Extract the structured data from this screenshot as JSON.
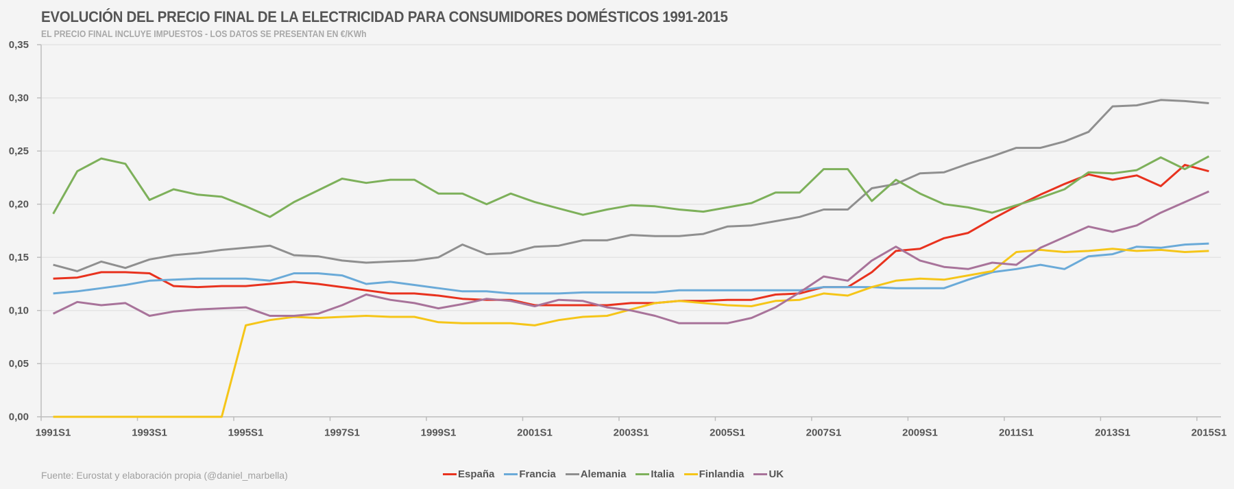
{
  "chart_data": {
    "type": "line",
    "title": "EVOLUCIÓN DEL PRECIO FINAL DE LA ELECTRICIDAD PARA CONSUMIDORES DOMÉSTICOS 1991-2015",
    "subtitle": "EL PRECIO FINAL INCLUYE IMPUESTOS - LOS DATOS SE PRESENTAN EN €/KWh",
    "xlabel": "",
    "ylabel": "",
    "ylim": [
      0,
      0.35
    ],
    "yticks": [
      "0,00",
      "0,05",
      "0,10",
      "0,15",
      "0,20",
      "0,25",
      "0,30",
      "0,35"
    ],
    "ytick_values": [
      0,
      0.05,
      0.1,
      0.15,
      0.2,
      0.25,
      0.3,
      0.35
    ],
    "grid": true,
    "legend_position": "bottom",
    "x": [
      "1991S1",
      "1991S2",
      "1992S1",
      "1992S2",
      "1993S1",
      "1993S2",
      "1994S1",
      "1994S2",
      "1995S1",
      "1995S2",
      "1996S1",
      "1996S2",
      "1997S1",
      "1997S2",
      "1998S1",
      "1998S2",
      "1999S1",
      "1999S2",
      "2000S1",
      "2000S2",
      "2001S1",
      "2001S2",
      "2002S1",
      "2002S2",
      "2003S1",
      "2003S2",
      "2004S1",
      "2004S2",
      "2005S1",
      "2005S2",
      "2006S1",
      "2006S2",
      "2007S1",
      "2007S2",
      "2008S1",
      "2008S2",
      "2009S1",
      "2009S2",
      "2010S1",
      "2010S2",
      "2011S1",
      "2011S2",
      "2012S1",
      "2012S2",
      "2013S1",
      "2013S2",
      "2014S1",
      "2014S2",
      "2015S1"
    ],
    "xtick_labels": [
      "1991S1",
      "1993S1",
      "1995S1",
      "1997S1",
      "1999S1",
      "2001S1",
      "2003S1",
      "2005S1",
      "2007S1",
      "2009S1",
      "2011S1",
      "2013S1",
      "2015S1"
    ],
    "series": [
      {
        "name": "España",
        "color": "#e8321e",
        "values": [
          0.13,
          0.131,
          0.136,
          0.136,
          0.135,
          0.123,
          0.122,
          0.123,
          0.123,
          0.125,
          0.127,
          0.125,
          0.122,
          0.119,
          0.116,
          0.116,
          0.114,
          0.111,
          0.11,
          0.11,
          0.105,
          0.105,
          0.105,
          0.105,
          0.107,
          0.107,
          0.109,
          0.109,
          0.11,
          0.11,
          0.115,
          0.116,
          0.122,
          0.122,
          0.136,
          0.156,
          0.158,
          0.168,
          0.173,
          0.186,
          0.198,
          0.209,
          0.219,
          0.228,
          0.223,
          0.227,
          0.217,
          0.237,
          0.231
        ]
      },
      {
        "name": "Francia",
        "color": "#6aaad8",
        "values": [
          0.116,
          0.118,
          0.121,
          0.124,
          0.128,
          0.129,
          0.13,
          0.13,
          0.13,
          0.128,
          0.135,
          0.135,
          0.133,
          0.125,
          0.127,
          0.124,
          0.121,
          0.118,
          0.118,
          0.116,
          0.116,
          0.116,
          0.117,
          0.117,
          0.117,
          0.117,
          0.119,
          0.119,
          0.119,
          0.119,
          0.119,
          0.119,
          0.122,
          0.122,
          0.122,
          0.121,
          0.121,
          0.121,
          0.129,
          0.136,
          0.139,
          0.143,
          0.139,
          0.151,
          0.153,
          0.16,
          0.159,
          0.162,
          0.163
        ]
      },
      {
        "name": "Alemania",
        "color": "#8f8f8f",
        "values": [
          0.143,
          0.137,
          0.146,
          0.14,
          0.148,
          0.152,
          0.154,
          0.157,
          0.159,
          0.161,
          0.152,
          0.151,
          0.147,
          0.145,
          0.146,
          0.147,
          0.15,
          0.162,
          0.153,
          0.154,
          0.16,
          0.161,
          0.166,
          0.166,
          0.171,
          0.17,
          0.17,
          0.172,
          0.179,
          0.18,
          0.184,
          0.188,
          0.195,
          0.195,
          0.215,
          0.219,
          0.229,
          0.23,
          0.238,
          0.245,
          0.253,
          0.253,
          0.259,
          0.268,
          0.292,
          0.293,
          0.298,
          0.297,
          0.295
        ]
      },
      {
        "name": "Italia",
        "color": "#7db05a",
        "values": [
          0.191,
          0.231,
          0.243,
          0.238,
          0.204,
          0.214,
          0.209,
          0.207,
          0.198,
          0.188,
          0.202,
          0.213,
          0.224,
          0.22,
          0.223,
          0.223,
          0.21,
          0.21,
          0.2,
          0.21,
          0.202,
          0.196,
          0.19,
          0.195,
          0.199,
          0.198,
          0.195,
          0.193,
          0.197,
          0.201,
          0.211,
          0.211,
          0.233,
          0.233,
          0.203,
          0.223,
          0.21,
          0.2,
          0.197,
          0.192,
          0.199,
          0.206,
          0.214,
          0.23,
          0.229,
          0.232,
          0.244,
          0.233,
          0.245
        ]
      },
      {
        "name": "Finlandia",
        "color": "#f5c518",
        "values": [
          0,
          0,
          0,
          0,
          0,
          0,
          0,
          0,
          0.086,
          0.091,
          0.094,
          0.093,
          0.094,
          0.095,
          0.094,
          0.094,
          0.089,
          0.088,
          0.088,
          0.088,
          0.086,
          0.091,
          0.094,
          0.095,
          0.101,
          0.107,
          0.109,
          0.107,
          0.105,
          0.104,
          0.109,
          0.11,
          0.116,
          0.114,
          0.122,
          0.128,
          0.13,
          0.129,
          0.133,
          0.137,
          0.155,
          0.157,
          0.155,
          0.156,
          0.158,
          0.156,
          0.157,
          0.155,
          0.156
        ]
      },
      {
        "name": "UK",
        "color": "#a8739a",
        "values": [
          0.097,
          0.108,
          0.105,
          0.107,
          0.095,
          0.099,
          0.101,
          0.102,
          0.103,
          0.095,
          0.095,
          0.097,
          0.105,
          0.115,
          0.11,
          0.107,
          0.102,
          0.106,
          0.111,
          0.109,
          0.104,
          0.11,
          0.109,
          0.103,
          0.1,
          0.095,
          0.088,
          0.088,
          0.088,
          0.093,
          0.103,
          0.117,
          0.132,
          0.128,
          0.147,
          0.16,
          0.147,
          0.141,
          0.139,
          0.145,
          0.143,
          0.159,
          0.169,
          0.179,
          0.174,
          0.18,
          0.192,
          0.202,
          0.212
        ]
      }
    ]
  },
  "footer": {
    "source": "Fuente:  Eurostat y elaboración propia (@daniel_marbella)"
  }
}
